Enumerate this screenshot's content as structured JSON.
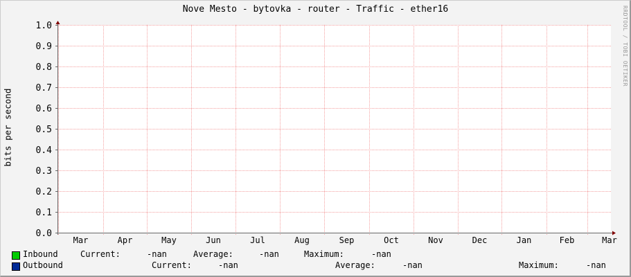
{
  "chart_data": {
    "type": "line",
    "title": "Nove Mesto - bytovka - router - Traffic - ether16",
    "ylabel": "bits per second",
    "xlabel": "",
    "ylim": [
      0,
      1.0
    ],
    "y_ticks": [
      "0.0",
      "0.1",
      "0.2",
      "0.3",
      "0.4",
      "0.5",
      "0.6",
      "0.7",
      "0.8",
      "0.9",
      "1.0"
    ],
    "x_ticks": [
      "Mar",
      "Apr",
      "May",
      "Jun",
      "Jul",
      "Aug",
      "Sep",
      "Oct",
      "Nov",
      "Dec",
      "Jan",
      "Feb",
      "Mar"
    ],
    "grid": true,
    "series": [
      {
        "name": "Inbound",
        "color": "#00cc00",
        "values": [],
        "current": "-nan",
        "average": "-nan",
        "maximum": "-nan"
      },
      {
        "name": "Outbound",
        "color": "#002a97",
        "values": [],
        "current": "-nan",
        "average": "-nan",
        "maximum": "-nan"
      }
    ],
    "legend_labels": {
      "current": "Current:",
      "average": "Average:",
      "maximum": "Maximum:"
    },
    "legend_placement": "bottom",
    "colors": {
      "grid": "#f4a0a0",
      "axis": "#800000",
      "background": "#ffffff",
      "canvas": "#f3f3f3"
    }
  },
  "watermark": "RRDTOOL / TOBI OETIKER"
}
